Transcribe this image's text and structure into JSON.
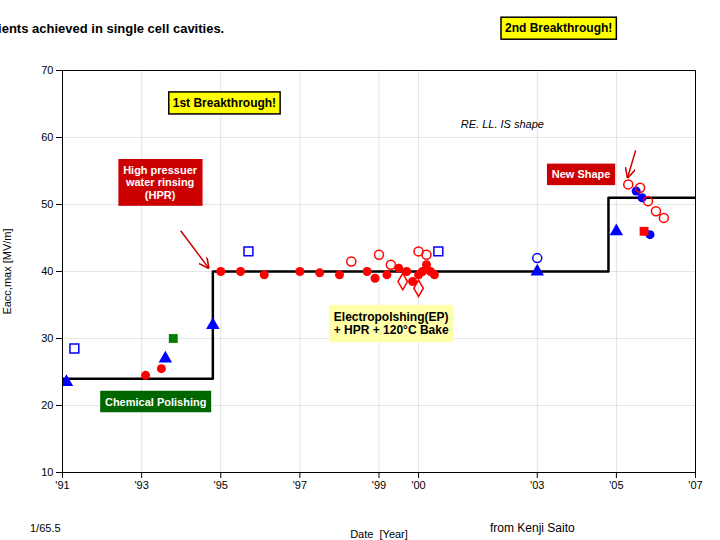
{
  "chart_data": {
    "type": "scatter",
    "title": "History of highest gradients achieved in single cell cavities.",
    "x_label": "Date  [Year]",
    "y_label": "Eacc,max [MV/m]",
    "xlim": [
      1991,
      2007
    ],
    "ylim": [
      10,
      70
    ],
    "xticks": [
      {
        "value": 1991,
        "label": "'91"
      },
      {
        "value": 1993,
        "label": "'93"
      },
      {
        "value": 1995,
        "label": "'95"
      },
      {
        "value": 1997,
        "label": "'97"
      },
      {
        "value": 1999,
        "label": "'99"
      },
      {
        "value": 2000,
        "label": "'00"
      },
      {
        "value": 2003,
        "label": "'03"
      },
      {
        "value": 2005,
        "label": "'05"
      },
      {
        "value": 2007,
        "label": "'07"
      }
    ],
    "yticks": [
      10,
      20,
      30,
      40,
      50,
      60,
      70
    ],
    "grid": true,
    "series": [
      {
        "type": "line",
        "color": "#000000",
        "x": [
          1991,
          1994.8,
          1994.8,
          2004.8,
          2004.8,
          2007
        ],
        "values": [
          24,
          24,
          40,
          40,
          51,
          51
        ]
      },
      {
        "type": "scatter",
        "marker": "circle",
        "color": "red",
        "x": [
          1993.1,
          1995.0,
          1995.5,
          1996.1,
          1997.0,
          1997.5,
          1998.0,
          1998.7,
          1998.9,
          1999.2,
          1999.5,
          1999.7,
          1999.85,
          2000.0,
          2000.1,
          2000.2,
          2000.3,
          2000.4
        ],
        "values": [
          24.5,
          40,
          40,
          39.5,
          40,
          39.8,
          39.5,
          40,
          39,
          39.5,
          40.5,
          40,
          38.5,
          39.5,
          40,
          41,
          40,
          39.5
        ]
      },
      {
        "type": "scatter",
        "marker": "circle",
        "color": "red",
        "x": [
          1993.5
        ],
        "values": [
          25.5
        ]
      },
      {
        "type": "scatter",
        "marker": "circle",
        "color": "blue",
        "x": [
          2005.5,
          2005.65,
          2005.85
        ],
        "values": [
          52,
          51,
          45.5
        ]
      },
      {
        "type": "scatter",
        "marker": "open_circle",
        "color": "red",
        "x": [
          1998.3,
          1999.0,
          1999.3,
          2000.0,
          2000.2,
          2005.3,
          2005.6,
          2005.8,
          2006.0,
          2006.2
        ],
        "values": [
          41.5,
          42.5,
          41,
          43,
          42.5,
          53,
          52.5,
          50.5,
          49,
          48
        ]
      },
      {
        "type": "scatter",
        "marker": "open_circle",
        "color": "blue",
        "x": [
          2003.0
        ],
        "values": [
          42
        ]
      },
      {
        "type": "scatter",
        "marker": "open_square",
        "color": "blue",
        "x": [
          1991.3,
          1995.7,
          2000.5
        ],
        "values": [
          28.5,
          43,
          43
        ]
      },
      {
        "type": "scatter",
        "marker": "open_diamond",
        "color": "red",
        "x": [
          1999.6,
          2000.0
        ],
        "values": [
          38.5,
          37.5
        ]
      },
      {
        "type": "scatter",
        "marker": "triangle",
        "color": "blue",
        "x": [
          1991.1,
          1993.6,
          1994.8,
          2003.0,
          2005.0
        ],
        "values": [
          23.5,
          27,
          32,
          40,
          46
        ]
      },
      {
        "type": "scatter",
        "marker": "square",
        "color": "red",
        "x": [
          2005.7
        ],
        "values": [
          46
        ]
      },
      {
        "type": "scatter",
        "marker": "square",
        "color": "green",
        "x": [
          1993.8
        ],
        "values": [
          30
        ]
      }
    ],
    "annotations": [
      {
        "text": "1st Breakthrough!",
        "color": "#FFFF00"
      },
      {
        "text": "2nd Breakthrough!",
        "color": "#FFFF00"
      },
      {
        "text": "RE. LL. IS shape"
      },
      {
        "text": "High pressuer\nwater rinsing\n(HPR)",
        "color": "#CC0000"
      },
      {
        "text": "New Shape",
        "color": "#CC0000"
      },
      {
        "text": "Electropolshing(EP)\n+ HPR + 120°C Bake",
        "color": "#FFFFAA"
      },
      {
        "text": "Chemical Polishing",
        "color": "#006600"
      },
      {
        "text": "1/65.5"
      },
      {
        "text": "from Kenji Saito"
      }
    ]
  }
}
